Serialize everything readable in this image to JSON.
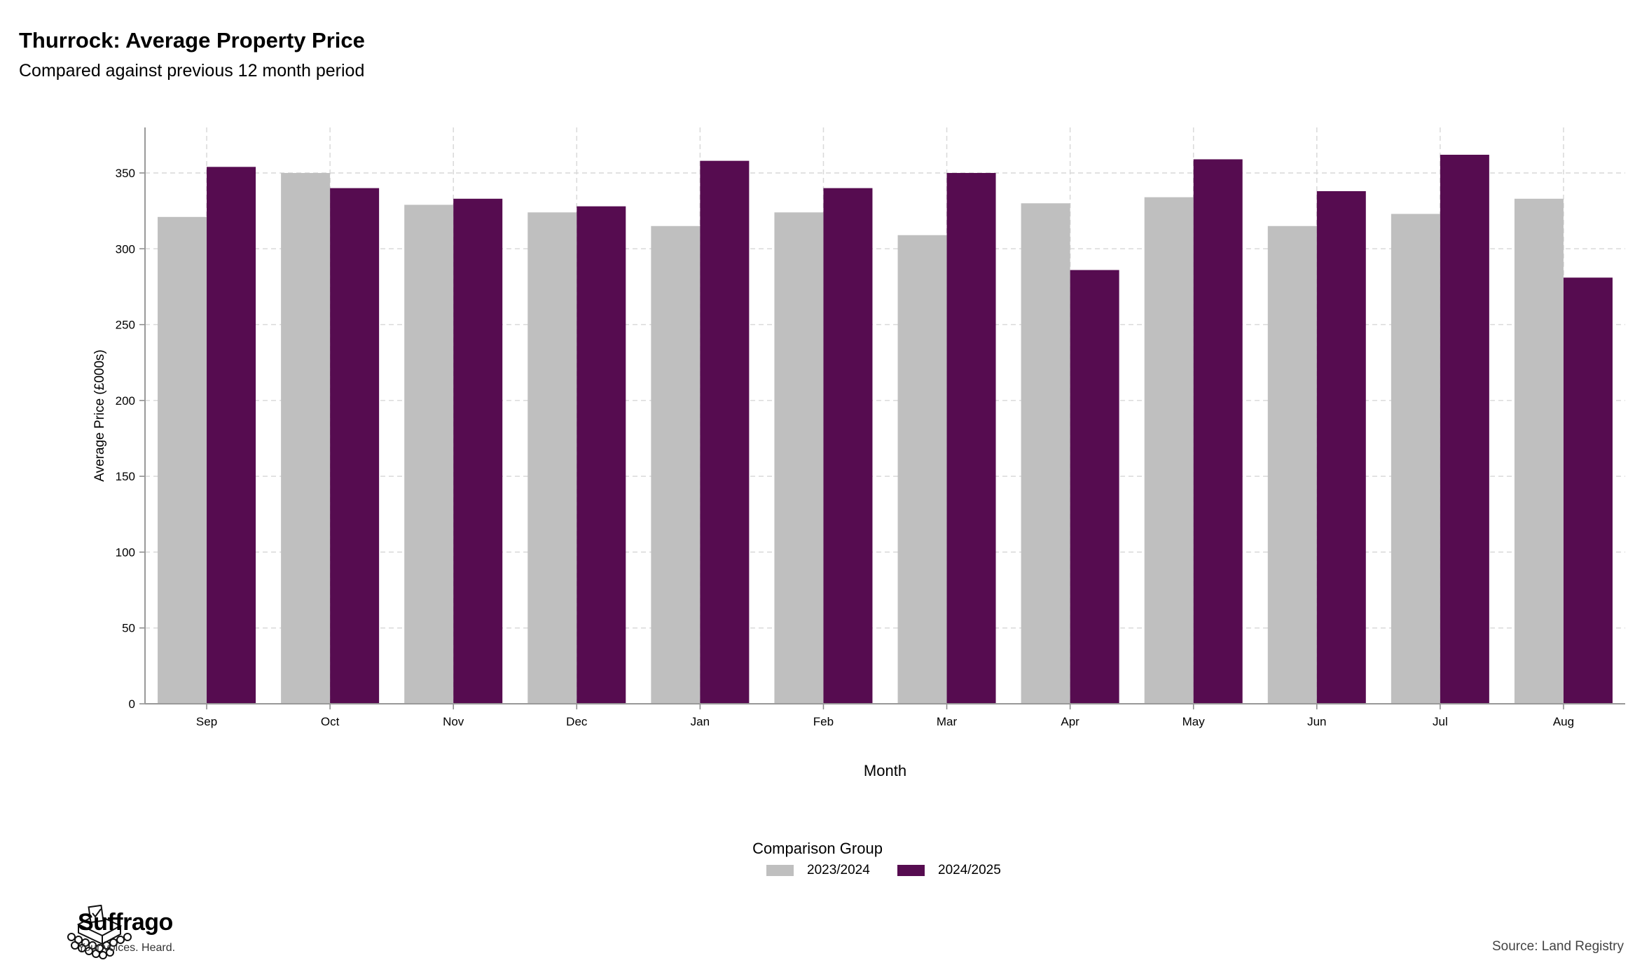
{
  "title": "Thurrock: Average Property Price",
  "subtitle": "Compared against previous 12 month period",
  "legend": {
    "title": "Comparison Group",
    "items": [
      {
        "label": "2023/2024",
        "color": "#bfbfbf"
      },
      {
        "label": "2024/2025",
        "color": "#560c50"
      }
    ]
  },
  "branding": {
    "name": "Suffrago",
    "tagline": "Your voices. Heard.",
    "logo_icon": "ballot-box-icon"
  },
  "source": "Source: Land Registry",
  "chart_data": {
    "type": "bar",
    "xlabel": "Month",
    "ylabel": "Average Price (£000s)",
    "ylim": [
      0,
      380
    ],
    "yticks": [
      0,
      50,
      100,
      150,
      200,
      250,
      300,
      350
    ],
    "grid": true,
    "legend_position": "bottom",
    "categories": [
      "Sep",
      "Oct",
      "Nov",
      "Dec",
      "Jan",
      "Feb",
      "Mar",
      "Apr",
      "May",
      "Jun",
      "Jul",
      "Aug"
    ],
    "series": [
      {
        "name": "2023/2024",
        "color": "#bfbfbf",
        "values": [
          321,
          350,
          329,
          324,
          315,
          324,
          309,
          330,
          334,
          315,
          323,
          333
        ]
      },
      {
        "name": "2024/2025",
        "color": "#560c50",
        "values": [
          354,
          340,
          333,
          328,
          358,
          340,
          350,
          286,
          359,
          338,
          362,
          281
        ]
      }
    ]
  }
}
